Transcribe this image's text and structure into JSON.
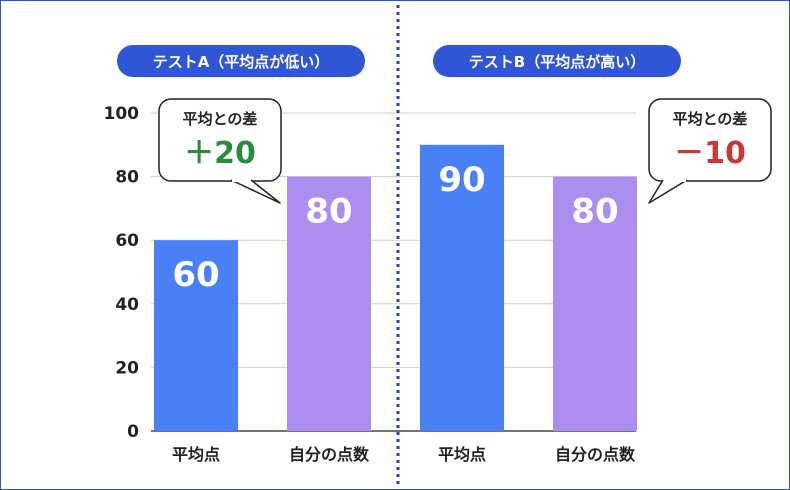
{
  "chart_data": {
    "type": "bar",
    "ylim": [
      0,
      100
    ],
    "yticks": [
      0,
      20,
      40,
      60,
      80,
      100
    ],
    "grid": true,
    "colors": {
      "average": "#4a80f5",
      "mine": "#ab8ef0",
      "panel_badge": "#2f56d4",
      "divider": "#2f3fb0",
      "diff_positive": "#2a8a3e",
      "diff_negative": "#c43a3a"
    },
    "panels": [
      {
        "title": "テストA（平均点が低い）",
        "categories": [
          "平均点",
          "自分の点数"
        ],
        "values": [
          60,
          80
        ],
        "callout": {
          "label": "平均との差",
          "value": "＋20",
          "sign": "positive"
        }
      },
      {
        "title": "テストB（平均点が高い）",
        "categories": [
          "平均点",
          "自分の点数"
        ],
        "values": [
          90,
          80
        ],
        "callout": {
          "label": "平均との差",
          "value": "－10",
          "sign": "negative"
        }
      }
    ]
  }
}
